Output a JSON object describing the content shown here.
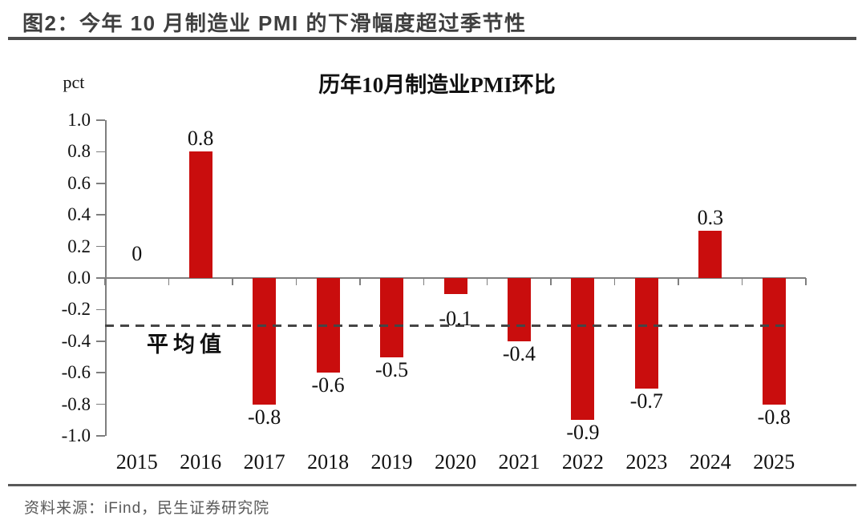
{
  "figure": {
    "title": "图2：今年 10 月制造业 PMI 的下滑幅度超过季节性",
    "source": "资料来源：iFind，民生证券研究院"
  },
  "chart_data": {
    "type": "bar",
    "title": "历年10月制造业PMI环比",
    "unit_label": "pct",
    "categories": [
      "2015",
      "2016",
      "2017",
      "2018",
      "2019",
      "2020",
      "2021",
      "2022",
      "2023",
      "2024",
      "2025"
    ],
    "values": [
      0,
      0.8,
      -0.8,
      -0.6,
      -0.5,
      -0.1,
      -0.4,
      -0.9,
      -0.7,
      0.3,
      -0.8
    ],
    "value_labels": [
      "0",
      "0.8",
      "-0.8",
      "-0.6",
      "-0.5",
      "-0.1",
      "-0.4",
      "-0.9",
      "-0.7",
      "0.3",
      "-0.8"
    ],
    "yticks": [
      "1.0",
      "0.8",
      "0.6",
      "0.4",
      "0.2",
      "0.0",
      "-0.2",
      "-0.4",
      "-0.6",
      "-0.8",
      "-1.0"
    ],
    "ylim": [
      -1.0,
      1.0
    ],
    "ytick_step": 0.2,
    "average_line": {
      "value": -0.3,
      "label": "平均值",
      "style": "dashed"
    },
    "grid": false,
    "legend": "none",
    "colors": {
      "bar": "#c90d0d",
      "axis": "#7f7f7f",
      "average_line": "#454545",
      "text": "#111111"
    }
  }
}
